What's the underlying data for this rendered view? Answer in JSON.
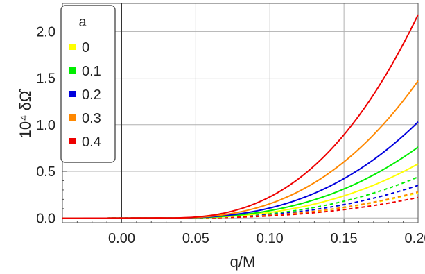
{
  "chart_data": {
    "type": "line",
    "xlabel": "q/M",
    "ylabel": "10⁴ δΩ̂",
    "xlim": [
      -0.04,
      0.2
    ],
    "ylim": [
      -0.05,
      2.3
    ],
    "x_ticks": [
      {
        "v": 0.0,
        "label": "0.00"
      },
      {
        "v": 0.05,
        "label": "0.05"
      },
      {
        "v": 0.1,
        "label": "0.10"
      },
      {
        "v": 0.15,
        "label": "0.15"
      },
      {
        "v": 0.2,
        "label": "0.20"
      }
    ],
    "y_ticks": [
      {
        "v": 0.0,
        "label": "0.0"
      },
      {
        "v": 0.5,
        "label": "0.5"
      },
      {
        "v": 1.0,
        "label": "1.0"
      },
      {
        "v": 1.5,
        "label": "1.5"
      },
      {
        "v": 2.0,
        "label": "2.0"
      }
    ],
    "grid": true,
    "legend": {
      "title": "a",
      "placement": "top-left"
    },
    "series": [
      {
        "name": "0",
        "color": "#ffff00",
        "end_solid": 0.58,
        "end_dashed": 0.27
      },
      {
        "name": "0.1",
        "color": "#00ee00",
        "end_solid": 0.76,
        "end_dashed": 0.44
      },
      {
        "name": "0.2",
        "color": "#0000dd",
        "end_solid": 1.03,
        "end_dashed": 0.35
      },
      {
        "name": "0.3",
        "color": "#ff8800",
        "end_solid": 1.47,
        "end_dashed": 0.28
      },
      {
        "name": "0.4",
        "color": "#ee0000",
        "end_solid": 2.18,
        "end_dashed": 0.22
      }
    ]
  }
}
